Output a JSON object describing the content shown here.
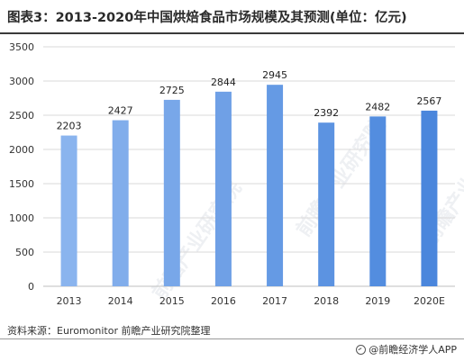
{
  "title": "图表3：2013-2020年中国烘焙食品市场规模及其预测(单位：亿元)",
  "source": "资料来源：Euromonitor 前瞻产业研究院整理",
  "brand": "@前瞻经济学人APP",
  "watermark": "前瞻产业研究院",
  "colors": {
    "bar_light": "#8ab4ee",
    "bar_dark": "#4a86dc",
    "grid": "#d9d9d9",
    "axis_text": "#333333"
  },
  "chart_data": {
    "type": "bar",
    "categories": [
      "2013",
      "2014",
      "2015",
      "2016",
      "2017",
      "2018",
      "2019",
      "2020E"
    ],
    "values": [
      2203,
      2427,
      2725,
      2844,
      2945,
      2392,
      2482,
      2567
    ],
    "yticks": [
      0,
      500,
      1000,
      1500,
      2000,
      2500,
      3000,
      3500
    ],
    "ylim": [
      0,
      3500
    ],
    "grid": true,
    "legend": "none"
  }
}
